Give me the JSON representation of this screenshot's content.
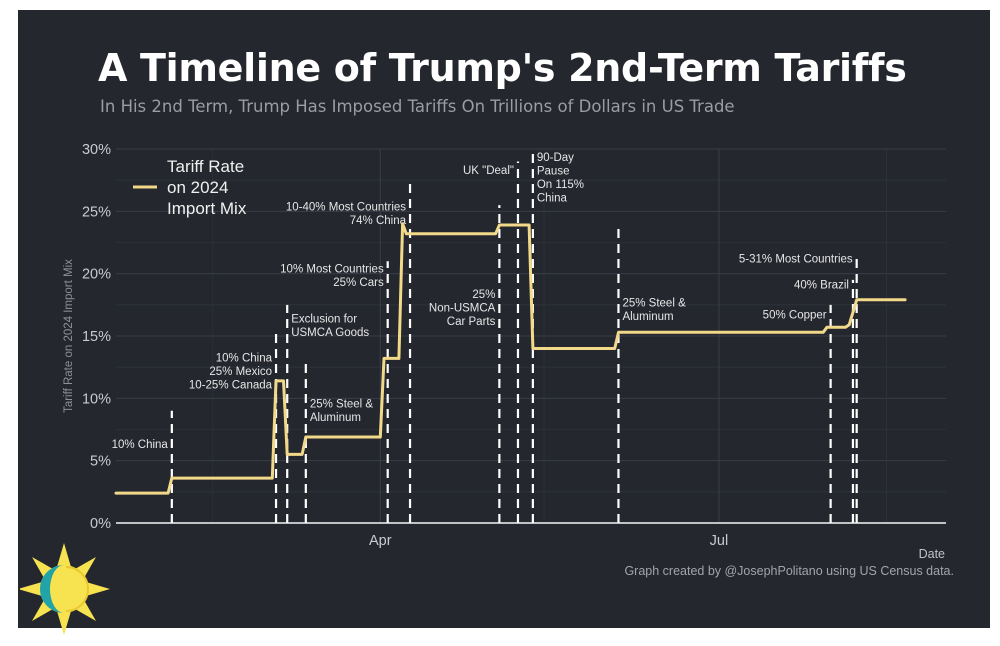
{
  "page": {
    "title": "A Timeline of Trump's 2nd-Term Tariffs",
    "subtitle": "In His 2nd Term, Trump Has Imposed Tariffs On Trillions of Dollars in US Trade",
    "credit": "Graph created by @JosephPolitano using US Census data."
  },
  "colors": {
    "background": "#24272e",
    "line": "#f2d98a",
    "event_line": "#ffffff",
    "grid": "#3a3e47",
    "text": "#e6e6e6"
  },
  "chart_data": {
    "type": "line",
    "title": "A Timeline of Trump's 2nd-Term Tariffs",
    "subtitle": "In His 2nd Term, Trump Has Imposed Tariffs On Trillions of Dollars in US Trade",
    "xlabel": "Date",
    "ylabel": "Tariff Rate on 2024 Import Mix",
    "xlim": [
      "2025-01-20",
      "2025-08-31"
    ],
    "ylim": [
      0,
      30
    ],
    "x_ticks": [
      {
        "date": "2025-04-01",
        "label": "Apr"
      },
      {
        "date": "2025-07-01",
        "label": "Jul"
      }
    ],
    "y_ticks": [
      0,
      5,
      10,
      15,
      20,
      25,
      30
    ],
    "y_tick_labels": [
      "0%",
      "5%",
      "10%",
      "15%",
      "20%",
      "25%",
      "30%"
    ],
    "grid": true,
    "legend_position": "top-left",
    "series": [
      {
        "name": "Tariff Rate on 2024 Import Mix",
        "legend_lines": [
          "Tariff Rate",
          "on 2024",
          "Import Mix"
        ],
        "points": [
          [
            "2025-01-20",
            2.4
          ],
          [
            "2025-02-03",
            2.4
          ],
          [
            "2025-02-04",
            3.6
          ],
          [
            "2025-03-03",
            3.6
          ],
          [
            "2025-03-04",
            11.4
          ],
          [
            "2025-03-06",
            11.4
          ],
          [
            "2025-03-07",
            5.5
          ],
          [
            "2025-03-11",
            5.5
          ],
          [
            "2025-03-12",
            6.9
          ],
          [
            "2025-04-01",
            6.9
          ],
          [
            "2025-04-02",
            13.2
          ],
          [
            "2025-04-06",
            13.2
          ],
          [
            "2025-04-07",
            24.0
          ],
          [
            "2025-04-08",
            23.2
          ],
          [
            "2025-05-02",
            23.2
          ],
          [
            "2025-05-03",
            23.9
          ],
          [
            "2025-05-11",
            23.9
          ],
          [
            "2025-05-12",
            14.0
          ],
          [
            "2025-06-03",
            14.0
          ],
          [
            "2025-06-04",
            15.3
          ],
          [
            "2025-07-29",
            15.3
          ],
          [
            "2025-07-30",
            15.7
          ],
          [
            "2025-08-04",
            15.7
          ],
          [
            "2025-08-05",
            15.9
          ],
          [
            "2025-08-07",
            17.9
          ],
          [
            "2025-08-20",
            17.9
          ]
        ]
      }
    ],
    "events": [
      {
        "date": "2025-02-04",
        "top": 9.0,
        "lines": [
          "10% China"
        ],
        "side": "left",
        "label_y": 6.0
      },
      {
        "date": "2025-03-04",
        "top": 15.5,
        "lines": [
          "10% China",
          "25% Mexico",
          "10-25% Canada"
        ],
        "side": "left",
        "label_y": 10.8
      },
      {
        "date": "2025-03-07",
        "top": 17.5,
        "lines": [
          "Exclusion for",
          "USMCA Goods"
        ],
        "side": "right",
        "label_y": 15.0
      },
      {
        "date": "2025-03-12",
        "top": 13.0,
        "lines": [
          "25% Steel &",
          "Aluminum"
        ],
        "side": "right",
        "label_y": 8.2
      },
      {
        "date": "2025-04-03",
        "top": 21.0,
        "lines": [
          "10% Most Countries",
          "25% Cars"
        ],
        "side": "left",
        "label_y": 19.0
      },
      {
        "date": "2025-04-09",
        "top": 27.5,
        "lines": [
          "10-40% Most Countries",
          "74% China"
        ],
        "side": "left",
        "label_y": 24.0
      },
      {
        "date": "2025-05-03",
        "top": 25.5,
        "lines": [
          "25%",
          "Non-USMCA",
          "Car Parts"
        ],
        "side": "left",
        "label_y": 15.9
      },
      {
        "date": "2025-05-08",
        "top": 29.0,
        "lines": [
          "UK \"Deal\""
        ],
        "side": "left",
        "label_y": 28.0
      },
      {
        "date": "2025-05-12",
        "top": 29.8,
        "lines": [
          "90-Day",
          "Pause",
          "On 115%",
          "China"
        ],
        "side": "right",
        "label_y": 25.8
      },
      {
        "date": "2025-06-04",
        "top": 23.6,
        "lines": [
          "25% Steel &",
          "Aluminum"
        ],
        "side": "right",
        "label_y": 16.3
      },
      {
        "date": "2025-07-31",
        "top": 17.5,
        "lines": [
          "50% Copper"
        ],
        "side": "left",
        "label_y": 16.4
      },
      {
        "date": "2025-08-06",
        "top": 19.5,
        "lines": [
          "40% Brazil"
        ],
        "side": "left",
        "label_y": 18.8
      },
      {
        "date": "2025-08-07",
        "top": 21.5,
        "lines": [
          "5-31% Most Countries"
        ],
        "side": "left",
        "label_y": 20.9
      }
    ]
  }
}
